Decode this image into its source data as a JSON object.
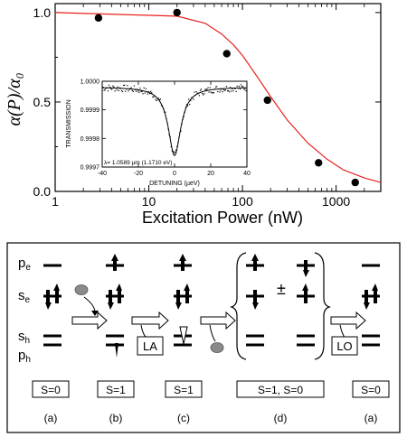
{
  "chart_data": [
    {
      "type": "scatter",
      "xlabel": "Excitation Power (nW)",
      "ylabel": "α(P)/α₀",
      "x_scale": "log",
      "xlim": [
        1,
        3000
      ],
      "ylim": [
        0,
        1.05
      ],
      "x_ticks": [
        "1",
        "10",
        "100",
        "1000"
      ],
      "y_ticks": [
        "0.0",
        "0.5",
        "1.0"
      ],
      "series": [
        {
          "kind": "points",
          "color": "#000000",
          "x": [
            2.9,
            20,
            68,
            185,
            650,
            1600
          ],
          "y": [
            0.97,
            1.0,
            0.77,
            0.51,
            0.16,
            0.05
          ]
        },
        {
          "kind": "fit-line",
          "color": "#e8201c",
          "x": [
            1,
            20,
            40,
            60,
            80,
            100,
            140,
            200,
            300,
            500,
            800,
            1200,
            2000,
            3000
          ],
          "y": [
            1.0,
            0.98,
            0.94,
            0.88,
            0.82,
            0.76,
            0.65,
            0.53,
            0.4,
            0.27,
            0.18,
            0.12,
            0.075,
            0.05
          ]
        }
      ]
    },
    {
      "type": "line",
      "xlabel": "DETUNING  (µeV)",
      "ylabel": "TRANSMISSION",
      "xlim": [
        -40,
        40
      ],
      "ylim": [
        0.9997,
        1.0
      ],
      "x_ticks": [
        "-40",
        "-20",
        "0",
        "20",
        "40"
      ],
      "y_ticks": [
        "1.0000",
        "0.9999",
        "0.9998",
        "0.9997"
      ],
      "annotation": "λ= 1.0589 µm (1.1710 eV)",
      "series": [
        {
          "kind": "fit-line",
          "color": "#000000",
          "x": [
            -40,
            -20,
            -12,
            -8,
            -6,
            -4,
            -2,
            0,
            2,
            4,
            6,
            8,
            12,
            20,
            40
          ],
          "y": [
            0.99998,
            0.99997,
            0.99994,
            0.9999,
            0.99986,
            0.99981,
            0.99976,
            0.99974,
            0.99976,
            0.99981,
            0.99986,
            0.9999,
            0.99994,
            0.99997,
            0.99998
          ]
        }
      ]
    }
  ],
  "diagram": {
    "level_labels": {
      "pe": "pe",
      "se": "se",
      "sh": "sh",
      "ph": "ph"
    },
    "spin_boxes": [
      "S=0",
      "S=1",
      "S=1",
      "S=1, S=0",
      "S=0"
    ],
    "panel_labels": [
      "(a)",
      "(b)",
      "(c)",
      "(d)",
      "(a)"
    ],
    "phonon_boxes": [
      "LA",
      "LO"
    ],
    "plus_minus": "±"
  }
}
